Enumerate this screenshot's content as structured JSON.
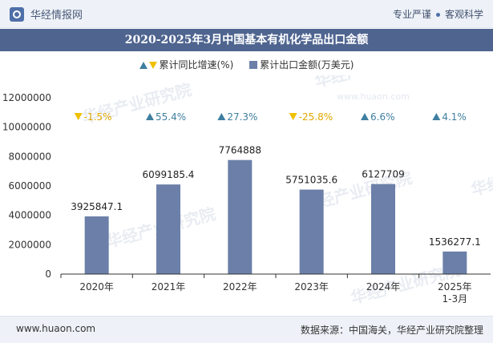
{
  "header": {
    "logo_text": "华经情报网",
    "slogan_a": "专业严谨",
    "slogan_b": "客观科学"
  },
  "chart_data": {
    "type": "bar",
    "title": "2020-2025年3月中国基本有机化学品出口金额",
    "categories": [
      "2020年",
      "2021年",
      "2022年",
      "2023年",
      "2024年",
      "2025年\n1-3月"
    ],
    "series": [
      {
        "name": "累计出口金额(万美元)",
        "values": [
          3925847.1,
          6099185.4,
          7764888,
          5751035.6,
          6127709,
          1536277.1
        ],
        "labels": [
          "3925847.1",
          "6099185.4",
          "7764888",
          "5751035.6",
          "6127709",
          "1536277.1"
        ],
        "color": "#6b7fa8"
      },
      {
        "name": "累计同比增速(%)",
        "values": [
          -1.5,
          55.4,
          27.3,
          -25.8,
          6.6,
          4.1
        ],
        "labels": [
          "-1.5%",
          "55.4%",
          "27.3%",
          "-25.8%",
          "6.6%",
          "4.1%"
        ],
        "up_color": "#3f7fa0",
        "down_color": "#f0c000"
      }
    ],
    "ylim": [
      0,
      12000000
    ],
    "yticks": [
      0,
      2000000,
      4000000,
      6000000,
      8000000,
      10000000,
      12000000
    ],
    "ytick_labels": [
      "0",
      "2000000",
      "4000000",
      "6000000",
      "8000000",
      "10000000",
      "12000000"
    ],
    "legend_position": "top-center",
    "grid": false
  },
  "watermarks": [
    "华经产业研究院",
    "www.huaon.com"
  ],
  "footer": {
    "url": "www.huaon.com",
    "source": "数据来源：中国海关，华经产业研究院整理"
  }
}
